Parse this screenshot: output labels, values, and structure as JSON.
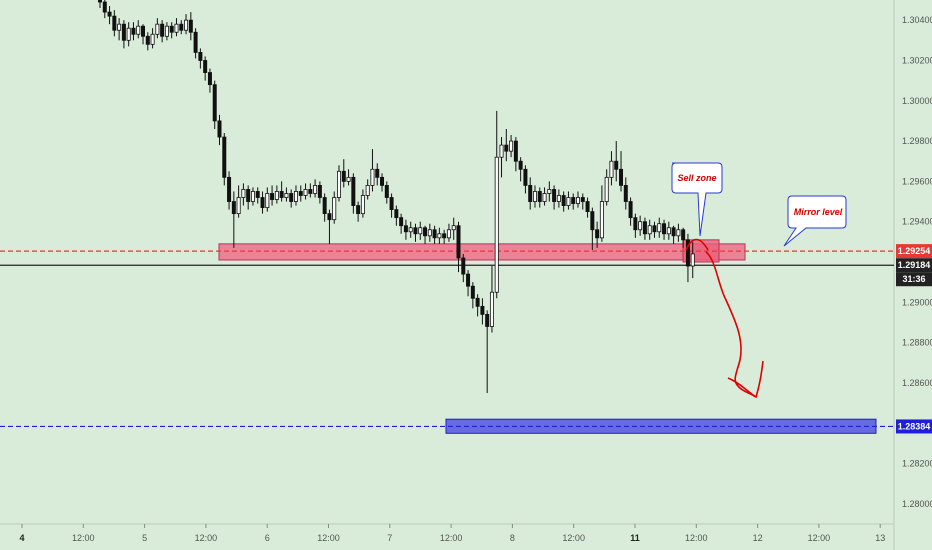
{
  "chart_data": {
    "type": "candlestick",
    "title": "",
    "y_axis": {
      "position": "right",
      "range": [
        1.279,
        1.305
      ],
      "ticks": [
        "1.30400",
        "1.30200",
        "1.30000",
        "1.29800",
        "1.29600",
        "1.29400",
        "1.29000",
        "1.28800",
        "1.28600",
        "1.28200",
        "1.28000"
      ]
    },
    "x_axis": {
      "ticks": [
        {
          "label": "4",
          "bold": true
        },
        {
          "label": "12:00",
          "bold": false
        },
        {
          "label": "5",
          "bold": false
        },
        {
          "label": "12:00",
          "bold": false
        },
        {
          "label": "6",
          "bold": false
        },
        {
          "label": "12:00",
          "bold": false
        },
        {
          "label": "7",
          "bold": false
        },
        {
          "label": "12:00",
          "bold": false
        },
        {
          "label": "8",
          "bold": false
        },
        {
          "label": "12:00",
          "bold": false
        },
        {
          "label": "11",
          "bold": true
        },
        {
          "label": "12:00",
          "bold": false
        },
        {
          "label": "12",
          "bold": false
        },
        {
          "label": "12:00",
          "bold": false
        },
        {
          "label": "13",
          "bold": false
        }
      ]
    },
    "levels": [
      {
        "price": 1.29254,
        "label": "1.29254",
        "color": "#e53935",
        "style": "dashed"
      },
      {
        "price": 1.29184,
        "label": "1.29184",
        "color": "#222222",
        "style": "solid"
      },
      {
        "price": 1.28384,
        "label": "1.28384",
        "color": "#1e1edc",
        "style": "dashed"
      }
    ],
    "countdown_label": "31:36",
    "zones": [
      {
        "name": "red-support-zone",
        "price_low": 1.2921,
        "price_high": 1.2929,
        "color": "#f06080"
      },
      {
        "name": "sell-zone-box",
        "price_low": 1.292,
        "price_high": 1.2931,
        "color": "#e8607a"
      },
      {
        "name": "blue-target-zone",
        "price_low": 1.2835,
        "price_high": 1.2842,
        "color": "#4040e0"
      }
    ],
    "annotations": [
      {
        "name": "sell-zone-callout",
        "text": "Sell zone"
      },
      {
        "name": "mirror-level-callout",
        "text": "Mirror level"
      }
    ],
    "candles": [
      [
        1.3052,
        1.3049,
        1.3054,
        1.3046
      ],
      [
        1.3049,
        1.3044,
        1.3051,
        1.3041
      ],
      [
        1.3044,
        1.3042,
        1.3047,
        1.3038
      ],
      [
        1.3042,
        1.3035,
        1.3045,
        1.3032
      ],
      [
        1.3035,
        1.3038,
        1.3041,
        1.303
      ],
      [
        1.3038,
        1.303,
        1.304,
        1.3026
      ],
      [
        1.303,
        1.3036,
        1.3039,
        1.3027
      ],
      [
        1.3036,
        1.3033,
        1.3039,
        1.303
      ],
      [
        1.3033,
        1.3037,
        1.304,
        1.3031
      ],
      [
        1.3037,
        1.3032,
        1.3038,
        1.3028
      ],
      [
        1.3032,
        1.3028,
        1.3034,
        1.3025
      ],
      [
        1.3028,
        1.3033,
        1.3036,
        1.3026
      ],
      [
        1.3033,
        1.3038,
        1.3041,
        1.3031
      ],
      [
        1.3038,
        1.3032,
        1.304,
        1.3029
      ],
      [
        1.3032,
        1.3037,
        1.3039,
        1.303
      ],
      [
        1.3037,
        1.3034,
        1.3039,
        1.3031
      ],
      [
        1.3034,
        1.3038,
        1.3041,
        1.3032
      ],
      [
        1.3038,
        1.3035,
        1.304,
        1.3033
      ],
      [
        1.3035,
        1.304,
        1.3043,
        1.3033
      ],
      [
        1.304,
        1.3034,
        1.3044,
        1.303
      ],
      [
        1.3034,
        1.3024,
        1.3036,
        1.3021
      ],
      [
        1.3024,
        1.302,
        1.3026,
        1.3016
      ],
      [
        1.302,
        1.3014,
        1.3022,
        1.301
      ],
      [
        1.3014,
        1.3008,
        1.3016,
        1.3004
      ],
      [
        1.3008,
        1.299,
        1.301,
        1.2986
      ],
      [
        1.299,
        1.2982,
        1.2993,
        1.2978
      ],
      [
        1.2982,
        1.2962,
        1.2984,
        1.2958
      ],
      [
        1.2962,
        1.295,
        1.2965,
        1.2946
      ],
      [
        1.295,
        1.2944,
        1.2955,
        1.2927
      ],
      [
        1.2944,
        1.2952,
        1.2958,
        1.2942
      ],
      [
        1.2952,
        1.2956,
        1.2959,
        1.2948
      ],
      [
        1.2956,
        1.295,
        1.2958,
        1.2946
      ],
      [
        1.295,
        1.2955,
        1.2957,
        1.2948
      ],
      [
        1.2955,
        1.2952,
        1.2957,
        1.2949
      ],
      [
        1.2952,
        1.2947,
        1.2955,
        1.2944
      ],
      [
        1.2947,
        1.2954,
        1.2957,
        1.2945
      ],
      [
        1.2954,
        1.2951,
        1.2958,
        1.2948
      ],
      [
        1.2951,
        1.2955,
        1.2958,
        1.2949
      ],
      [
        1.2955,
        1.2952,
        1.296,
        1.295
      ],
      [
        1.2952,
        1.2954,
        1.2957,
        1.295
      ],
      [
        1.2954,
        1.295,
        1.2956,
        1.2947
      ],
      [
        1.295,
        1.2955,
        1.2958,
        1.2948
      ],
      [
        1.2955,
        1.2953,
        1.2958,
        1.295
      ],
      [
        1.2953,
        1.2956,
        1.2959,
        1.2951
      ],
      [
        1.2956,
        1.2954,
        1.2959,
        1.2952
      ],
      [
        1.2954,
        1.2958,
        1.2961,
        1.2952
      ],
      [
        1.2958,
        1.2952,
        1.296,
        1.2949
      ],
      [
        1.2952,
        1.2944,
        1.2954,
        1.294
      ],
      [
        1.2944,
        1.2941,
        1.2946,
        1.2929
      ],
      [
        1.2941,
        1.2952,
        1.2955,
        1.2939
      ],
      [
        1.2952,
        1.2965,
        1.2968,
        1.295
      ],
      [
        1.2965,
        1.296,
        1.2971,
        1.2957
      ],
      [
        1.296,
        1.2962,
        1.2966,
        1.2958
      ],
      [
        1.2962,
        1.2948,
        1.2964,
        1.2944
      ],
      [
        1.2948,
        1.2944,
        1.295,
        1.294
      ],
      [
        1.2944,
        1.2953,
        1.2956,
        1.2942
      ],
      [
        1.2953,
        1.2958,
        1.2961,
        1.2951
      ],
      [
        1.2958,
        1.2966,
        1.2976,
        1.2955
      ],
      [
        1.2966,
        1.2962,
        1.2969,
        1.2958
      ],
      [
        1.2962,
        1.2958,
        1.2964,
        1.2955
      ],
      [
        1.2958,
        1.2952,
        1.296,
        1.2949
      ],
      [
        1.2952,
        1.2946,
        1.2954,
        1.2942
      ],
      [
        1.2946,
        1.2942,
        1.2948,
        1.2938
      ],
      [
        1.2942,
        1.2938,
        1.2944,
        1.2934
      ],
      [
        1.2938,
        1.2935,
        1.2941,
        1.2931
      ],
      [
        1.2935,
        1.2937,
        1.294,
        1.2932
      ],
      [
        1.2937,
        1.2934,
        1.2939,
        1.293
      ],
      [
        1.2934,
        1.2937,
        1.294,
        1.2931
      ],
      [
        1.2937,
        1.2933,
        1.2938,
        1.2929
      ],
      [
        1.2933,
        1.2936,
        1.2939,
        1.293
      ],
      [
        1.2936,
        1.2932,
        1.2938,
        1.2929
      ],
      [
        1.2932,
        1.2934,
        1.2937,
        1.2929
      ],
      [
        1.2934,
        1.2932,
        1.2936,
        1.2929
      ],
      [
        1.2932,
        1.2936,
        1.2939,
        1.293
      ],
      [
        1.2936,
        1.2938,
        1.2942,
        1.2931
      ],
      [
        1.2938,
        1.2922,
        1.294,
        1.2915
      ],
      [
        1.2922,
        1.2914,
        1.2924,
        1.291
      ],
      [
        1.2914,
        1.2908,
        1.2916,
        1.2903
      ],
      [
        1.2908,
        1.2902,
        1.291,
        1.2897
      ],
      [
        1.2902,
        1.2898,
        1.2904,
        1.2893
      ],
      [
        1.2898,
        1.2894,
        1.2902,
        1.2889
      ],
      [
        1.2894,
        1.2888,
        1.2896,
        1.2855
      ],
      [
        1.2888,
        1.2905,
        1.2918,
        1.2885
      ],
      [
        1.2905,
        1.2972,
        1.2995,
        1.2902
      ],
      [
        1.2972,
        1.2978,
        1.2982,
        1.2962
      ],
      [
        1.2978,
        1.2975,
        1.2986,
        1.297
      ],
      [
        1.2975,
        1.298,
        1.2983,
        1.2972
      ],
      [
        1.298,
        1.297,
        1.2982,
        1.2965
      ],
      [
        1.297,
        1.2966,
        1.2972,
        1.296
      ],
      [
        1.2966,
        1.2958,
        1.2968,
        1.2954
      ],
      [
        1.2958,
        1.295,
        1.2962,
        1.2946
      ],
      [
        1.295,
        1.2955,
        1.2958,
        1.2947
      ],
      [
        1.2955,
        1.295,
        1.2957,
        1.2947
      ],
      [
        1.295,
        1.2954,
        1.2957,
        1.2948
      ],
      [
        1.2954,
        1.2956,
        1.296,
        1.295
      ],
      [
        1.2956,
        1.295,
        1.2958,
        1.2946
      ],
      [
        1.295,
        1.2953,
        1.2956,
        1.2947
      ],
      [
        1.2953,
        1.2948,
        1.2955,
        1.2945
      ],
      [
        1.2948,
        1.2952,
        1.2955,
        1.2946
      ],
      [
        1.2952,
        1.2949,
        1.2954,
        1.2946
      ],
      [
        1.2949,
        1.2952,
        1.2955,
        1.2947
      ],
      [
        1.2952,
        1.295,
        1.2954,
        1.2946
      ],
      [
        1.295,
        1.2945,
        1.2952,
        1.2942
      ],
      [
        1.2945,
        1.2936,
        1.2947,
        1.2926
      ],
      [
        1.2936,
        1.2932,
        1.294,
        1.2927
      ],
      [
        1.2932,
        1.295,
        1.2958,
        1.293
      ],
      [
        1.295,
        1.2962,
        1.2966,
        1.2948
      ],
      [
        1.2962,
        1.297,
        1.2975,
        1.2958
      ],
      [
        1.297,
        1.2966,
        1.298,
        1.296
      ],
      [
        1.2966,
        1.2958,
        1.2975,
        1.2955
      ],
      [
        1.2958,
        1.295,
        1.2962,
        1.2946
      ],
      [
        1.295,
        1.2942,
        1.2952,
        1.2938
      ],
      [
        1.2942,
        1.2936,
        1.2944,
        1.2932
      ],
      [
        1.2936,
        1.294,
        1.2943,
        1.2933
      ],
      [
        1.294,
        1.2934,
        1.2942,
        1.2931
      ],
      [
        1.2934,
        1.2938,
        1.2941,
        1.2931
      ],
      [
        1.2938,
        1.2935,
        1.294,
        1.2932
      ],
      [
        1.2935,
        1.2939,
        1.2942,
        1.2932
      ],
      [
        1.2939,
        1.2934,
        1.2941,
        1.2931
      ],
      [
        1.2934,
        1.2937,
        1.294,
        1.2931
      ],
      [
        1.2937,
        1.2933,
        1.2938,
        1.2929
      ],
      [
        1.2933,
        1.2936,
        1.2939,
        1.293
      ],
      [
        1.2936,
        1.2931,
        1.2937,
        1.2927
      ],
      [
        1.2931,
        1.2918,
        1.2934,
        1.291
      ],
      [
        1.2918,
        1.2924,
        1.293,
        1.2912
      ]
    ]
  }
}
